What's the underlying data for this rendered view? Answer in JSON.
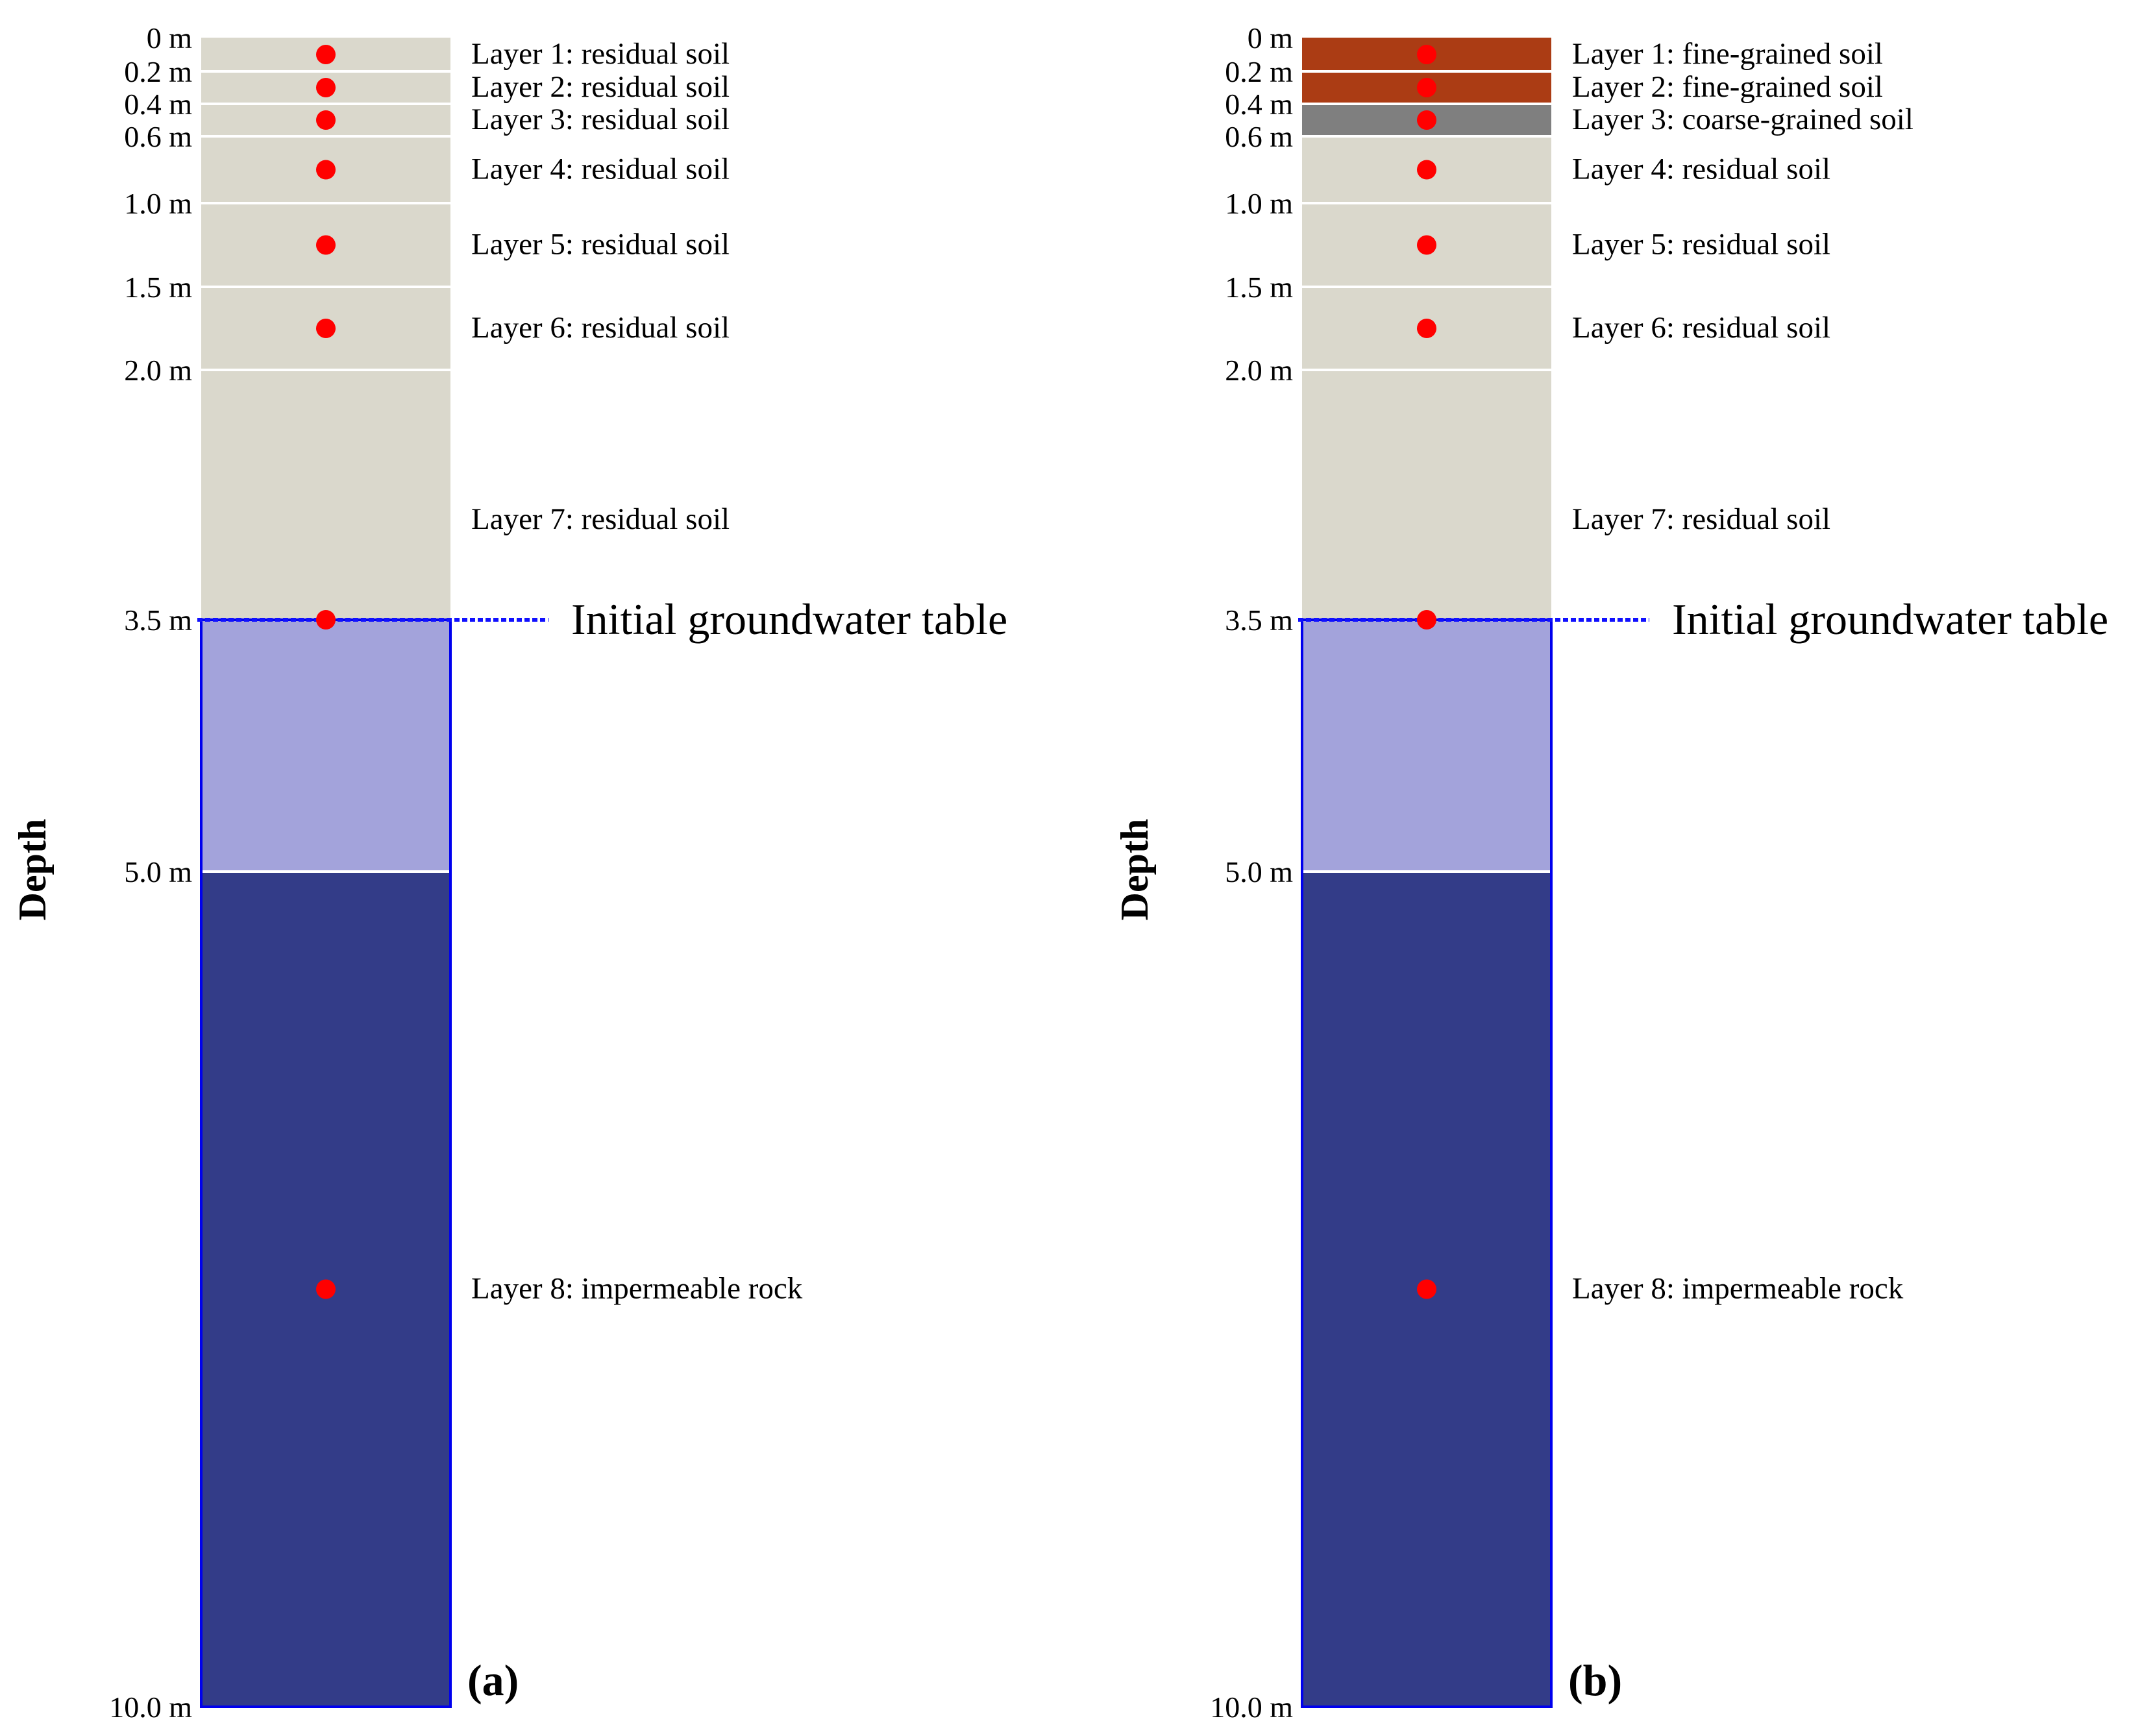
{
  "figure": {
    "depth_axis_label": "Depth",
    "groundwater_depth": 3.5,
    "colors": {
      "residual_soil": "#dad8cc",
      "fine_grained_soil": "#ab3c14",
      "coarse_grained_soil": "#7f7f7f",
      "saturated_zone": "#a3a3db",
      "impermeable_rock": "#333c88",
      "boundary": "#0000ee",
      "marker": "#ff0000",
      "groundwater_line": "#1010ff"
    },
    "depth_ticks": [
      {
        "value": 0,
        "label": "0 m"
      },
      {
        "value": 0.2,
        "label": "0.2 m"
      },
      {
        "value": 0.4,
        "label": "0.4 m"
      },
      {
        "value": 0.6,
        "label": "0.6 m"
      },
      {
        "value": 1.0,
        "label": "1.0 m"
      },
      {
        "value": 1.5,
        "label": "1.5 m"
      },
      {
        "value": 2.0,
        "label": "2.0 m"
      },
      {
        "value": 3.5,
        "label": "3.5 m"
      },
      {
        "value": 5.0,
        "label": "5.0 m"
      },
      {
        "value": 10.0,
        "label": "10.0 m"
      }
    ],
    "panels": [
      {
        "id": "a",
        "panel_label": "(a)",
        "groundwater_label": "Initial groundwater table",
        "layers": [
          {
            "label": "Layer 1: residual soil",
            "top": 0,
            "bottom": 0.2,
            "fill": "residual_soil",
            "point_depth": 0.1
          },
          {
            "label": "Layer 2: residual soil",
            "top": 0.2,
            "bottom": 0.4,
            "fill": "residual_soil",
            "point_depth": 0.3
          },
          {
            "label": "Layer 3: residual soil",
            "top": 0.4,
            "bottom": 0.6,
            "fill": "residual_soil",
            "point_depth": 0.5
          },
          {
            "label": "Layer 4: residual soil",
            "top": 0.6,
            "bottom": 1.0,
            "fill": "residual_soil",
            "point_depth": 0.8
          },
          {
            "label": "Layer 5: residual soil",
            "top": 1.0,
            "bottom": 1.5,
            "fill": "residual_soil",
            "point_depth": 1.25
          },
          {
            "label": "Layer 6: residual soil",
            "top": 1.5,
            "bottom": 2.0,
            "fill": "residual_soil",
            "point_depth": 1.75
          },
          {
            "label": "Layer 7: residual soil",
            "top": 2.0,
            "bottom": 3.5,
            "fill": "residual_soil",
            "point_depth": 3.5,
            "label_depth": 2.9
          },
          {
            "label": "",
            "top": 3.5,
            "bottom": 5.0,
            "fill": "saturated_zone"
          },
          {
            "label": "Layer 8: impermeable rock",
            "top": 5.0,
            "bottom": 10.0,
            "fill": "impermeable_rock",
            "point_depth": 7.5
          }
        ]
      },
      {
        "id": "b",
        "panel_label": "(b)",
        "groundwater_label": "Initial groundwater table",
        "layers": [
          {
            "label": "Layer 1: fine-grained soil",
            "top": 0,
            "bottom": 0.2,
            "fill": "fine_grained_soil",
            "point_depth": 0.1
          },
          {
            "label": "Layer 2: fine-grained soil",
            "top": 0.2,
            "bottom": 0.4,
            "fill": "fine_grained_soil",
            "point_depth": 0.3
          },
          {
            "label": "Layer 3: coarse-grained soil",
            "top": 0.4,
            "bottom": 0.6,
            "fill": "coarse_grained_soil",
            "point_depth": 0.5
          },
          {
            "label": "Layer 4: residual soil",
            "top": 0.6,
            "bottom": 1.0,
            "fill": "residual_soil",
            "point_depth": 0.8
          },
          {
            "label": "Layer 5: residual soil",
            "top": 1.0,
            "bottom": 1.5,
            "fill": "residual_soil",
            "point_depth": 1.25
          },
          {
            "label": "Layer 6: residual soil",
            "top": 1.5,
            "bottom": 2.0,
            "fill": "residual_soil",
            "point_depth": 1.75
          },
          {
            "label": "Layer 7: residual soil",
            "top": 2.0,
            "bottom": 3.5,
            "fill": "residual_soil",
            "point_depth": 3.5,
            "label_depth": 2.9
          },
          {
            "label": "",
            "top": 3.5,
            "bottom": 5.0,
            "fill": "saturated_zone"
          },
          {
            "label": "Layer 8: impermeable rock",
            "top": 5.0,
            "bottom": 10.0,
            "fill": "impermeable_rock",
            "point_depth": 7.5
          }
        ]
      }
    ]
  }
}
